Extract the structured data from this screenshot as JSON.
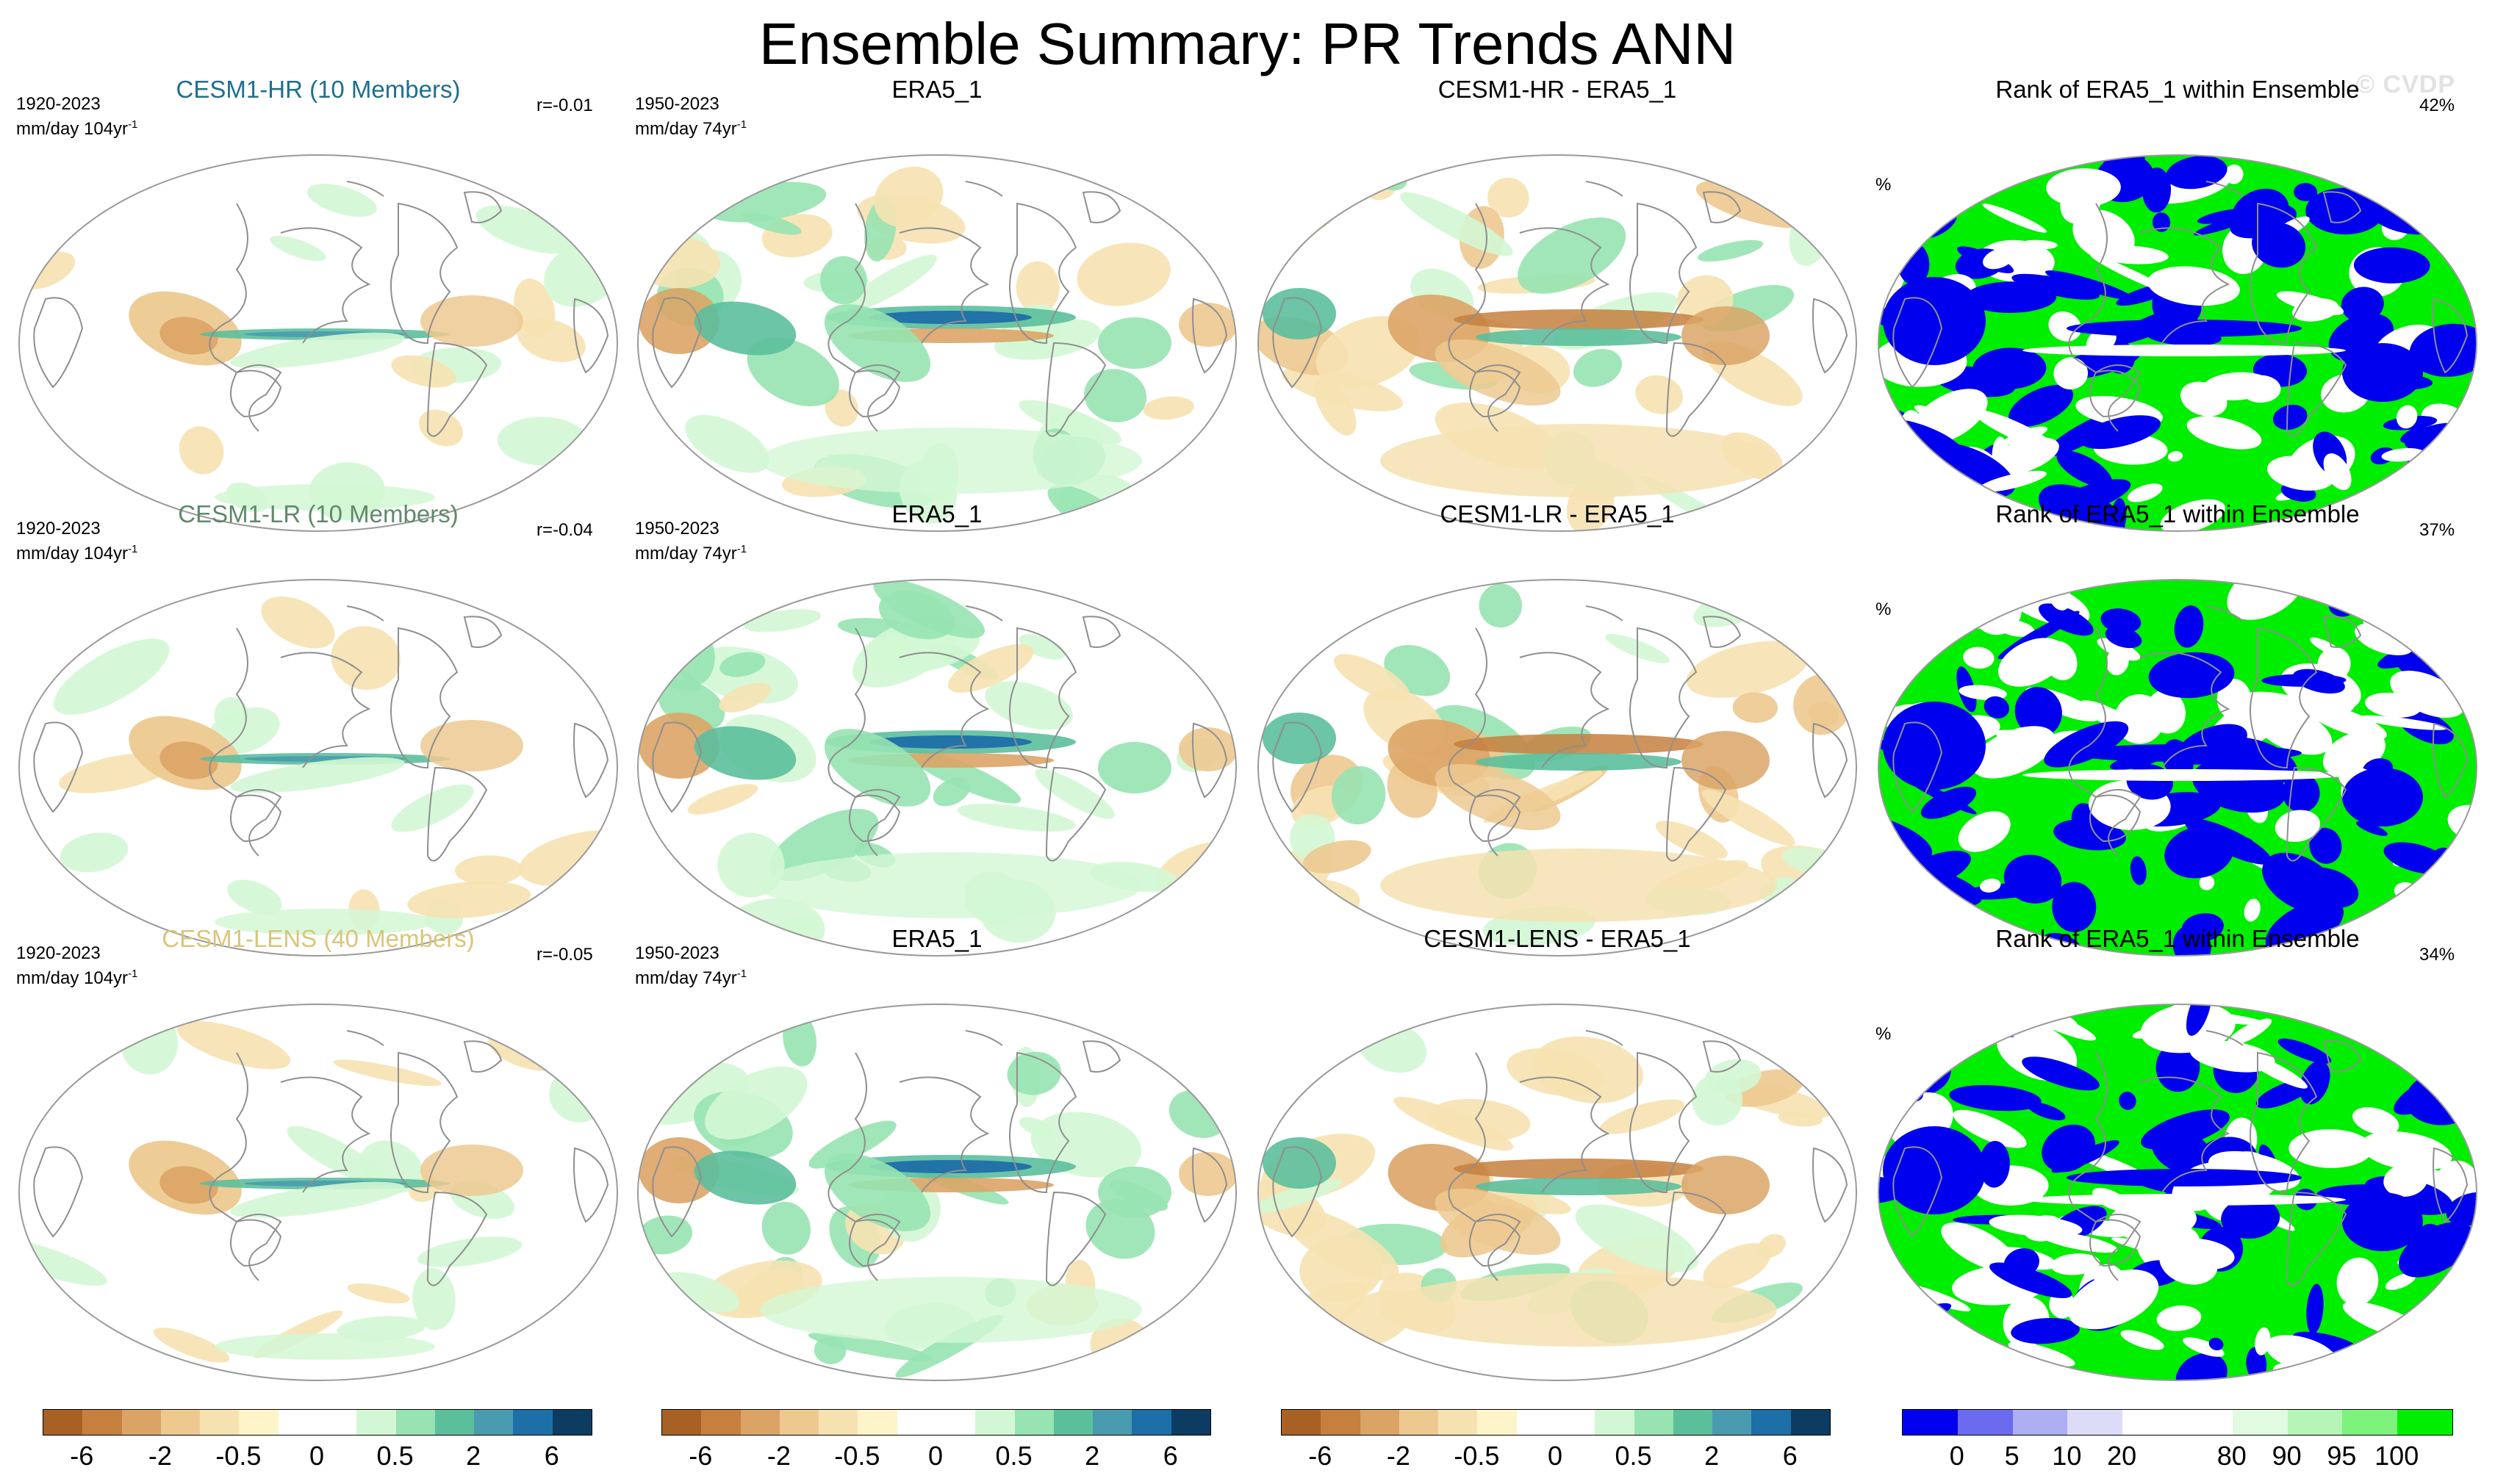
{
  "title": "Ensemble Summary: PR Trends ANN",
  "copyright": "© CVDP",
  "rows": [
    {
      "ensemble": {
        "title": "CESM1-HR (10 Members)",
        "title_color": "#1f6f8e",
        "years": "1920-2023",
        "units": "mm/day 104yr",
        "units_sup": "-1",
        "r": "r=-0.01"
      },
      "obs": {
        "title": "ERA5_1",
        "years": "1950-2023",
        "units": "mm/day 74yr",
        "units_sup": "-1"
      },
      "diff": {
        "title": "CESM1-HR - ERA5_1"
      },
      "rank": {
        "title": "Rank of ERA5_1 within Ensemble",
        "unit": "%",
        "pct": "42%"
      }
    },
    {
      "ensemble": {
        "title": "CESM1-LR (10 Members)",
        "title_color": "#5f8a6a",
        "years": "1920-2023",
        "units": "mm/day 104yr",
        "units_sup": "-1",
        "r": "r=-0.04"
      },
      "obs": {
        "title": "ERA5_1",
        "years": "1950-2023",
        "units": "mm/day 74yr",
        "units_sup": "-1"
      },
      "diff": {
        "title": "CESM1-LR - ERA5_1"
      },
      "rank": {
        "title": "Rank of ERA5_1 within Ensemble",
        "unit": "%",
        "pct": "37%"
      }
    },
    {
      "ensemble": {
        "title": "CESM1-LENS (40 Members)",
        "title_color": "#d9c57a",
        "years": "1920-2023",
        "units": "mm/day 104yr",
        "units_sup": "-1",
        "r": "r=-0.05"
      },
      "obs": {
        "title": "ERA5_1",
        "years": "1950-2023",
        "units": "mm/day 74yr",
        "units_sup": "-1"
      },
      "diff": {
        "title": "CESM1-LENS - ERA5_1"
      },
      "rank": {
        "title": "Rank of ERA5_1 within Ensemble",
        "unit": "%",
        "pct": "34%"
      }
    }
  ],
  "colorbar_trend": {
    "colors": [
      "#a86124",
      "#c57f3e",
      "#dba466",
      "#edc990",
      "#f6e2b1",
      "#fdf5c9",
      "#ffffff",
      "#ffffff",
      "#d3f7d4",
      "#97e3b1",
      "#5bbf9c",
      "#4a9bb0",
      "#1d6fa8",
      "#0d3c63"
    ],
    "labels": [
      {
        "text": "-6",
        "boundary": 1
      },
      {
        "text": "-2",
        "boundary": 3
      },
      {
        "text": "-0.5",
        "boundary": 5
      },
      {
        "text": "0",
        "boundary": 7
      },
      {
        "text": "0.5",
        "boundary": 9
      },
      {
        "text": "2",
        "boundary": 11
      },
      {
        "text": "6",
        "boundary": 13
      }
    ]
  },
  "colorbar_rank": {
    "colors": [
      "#0000ee",
      "#6b6bf0",
      "#aeaef3",
      "#dcdcf8",
      "#ffffff",
      "#ffffff",
      "#e0fbe0",
      "#b5f5b5",
      "#7df27d",
      "#00ee00"
    ],
    "labels": [
      {
        "text": "0",
        "boundary": 1
      },
      {
        "text": "5",
        "boundary": 2
      },
      {
        "text": "10",
        "boundary": 3
      },
      {
        "text": "20",
        "boundary": 4
      },
      {
        "text": "80",
        "boundary": 6
      },
      {
        "text": "90",
        "boundary": 7
      },
      {
        "text": "95",
        "boundary": 8
      },
      {
        "text": "100",
        "boundary": 9
      }
    ]
  },
  "map_palette": {
    "brown_dark": "#c57f3e",
    "brown": "#dba466",
    "tan": "#edc990",
    "cream": "#f6e2b1",
    "green_light": "#d3f7d4",
    "green": "#97e3b1",
    "teal": "#5bbf9c",
    "blue": "#4a9bb0",
    "navy": "#1d6fa8",
    "rank_blue": "#0000ee",
    "rank_green": "#00ee00",
    "coast": "#8f8f8f"
  }
}
